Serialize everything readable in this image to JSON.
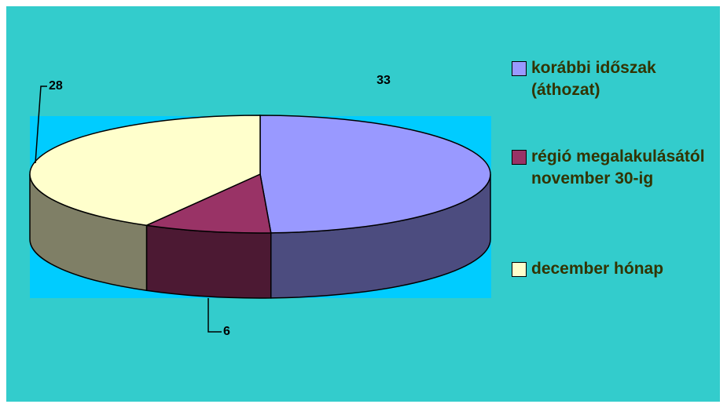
{
  "chart_data": {
    "type": "pie",
    "categories": [
      "korábbi időszak (áthozat)",
      "régió megalakulásától november 30-ig",
      "december hónap"
    ],
    "values": [
      33,
      6,
      28
    ],
    "colors": [
      "#9999ff",
      "#993366",
      "#ffffcc"
    ]
  }
}
